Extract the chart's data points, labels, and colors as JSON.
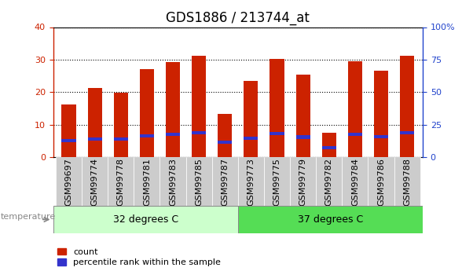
{
  "title": "GDS1886 / 213744_at",
  "samples": [
    "GSM99697",
    "GSM99774",
    "GSM99778",
    "GSM99781",
    "GSM99783",
    "GSM99785",
    "GSM99787",
    "GSM99773",
    "GSM99775",
    "GSM99779",
    "GSM99782",
    "GSM99784",
    "GSM99786",
    "GSM99788"
  ],
  "count_values": [
    16.2,
    21.2,
    19.8,
    27.0,
    29.2,
    31.2,
    13.3,
    23.5,
    30.2,
    25.3,
    7.5,
    29.5,
    26.5,
    31.3
  ],
  "percentile_values": [
    12.5,
    14.0,
    14.0,
    16.5,
    17.5,
    19.0,
    11.5,
    14.5,
    18.0,
    15.5,
    7.5,
    17.5,
    16.0,
    19.0
  ],
  "bar_color": "#cc2200",
  "percentile_color": "#3333cc",
  "bar_width": 0.55,
  "ylim_left": [
    0,
    40
  ],
  "ylim_right": [
    0,
    100
  ],
  "yticks_left": [
    0,
    10,
    20,
    30,
    40
  ],
  "yticks_right": [
    0,
    25,
    50,
    75,
    100
  ],
  "yticklabels_right": [
    "0",
    "25",
    "50",
    "75",
    "100%"
  ],
  "group1_label": "32 degrees C",
  "group2_label": "37 degrees C",
  "n_group1": 7,
  "n_group2": 7,
  "temp_label": "temperature",
  "legend_count": "count",
  "legend_percentile": "percentile rank within the sample",
  "bg_color_group1": "#ccffcc",
  "bg_color_group2": "#55dd55",
  "tick_bg_color": "#cccccc",
  "left_axis_color": "#cc2200",
  "right_axis_color": "#2244cc",
  "title_fontsize": 12,
  "tick_fontsize": 8,
  "label_fontsize": 9
}
